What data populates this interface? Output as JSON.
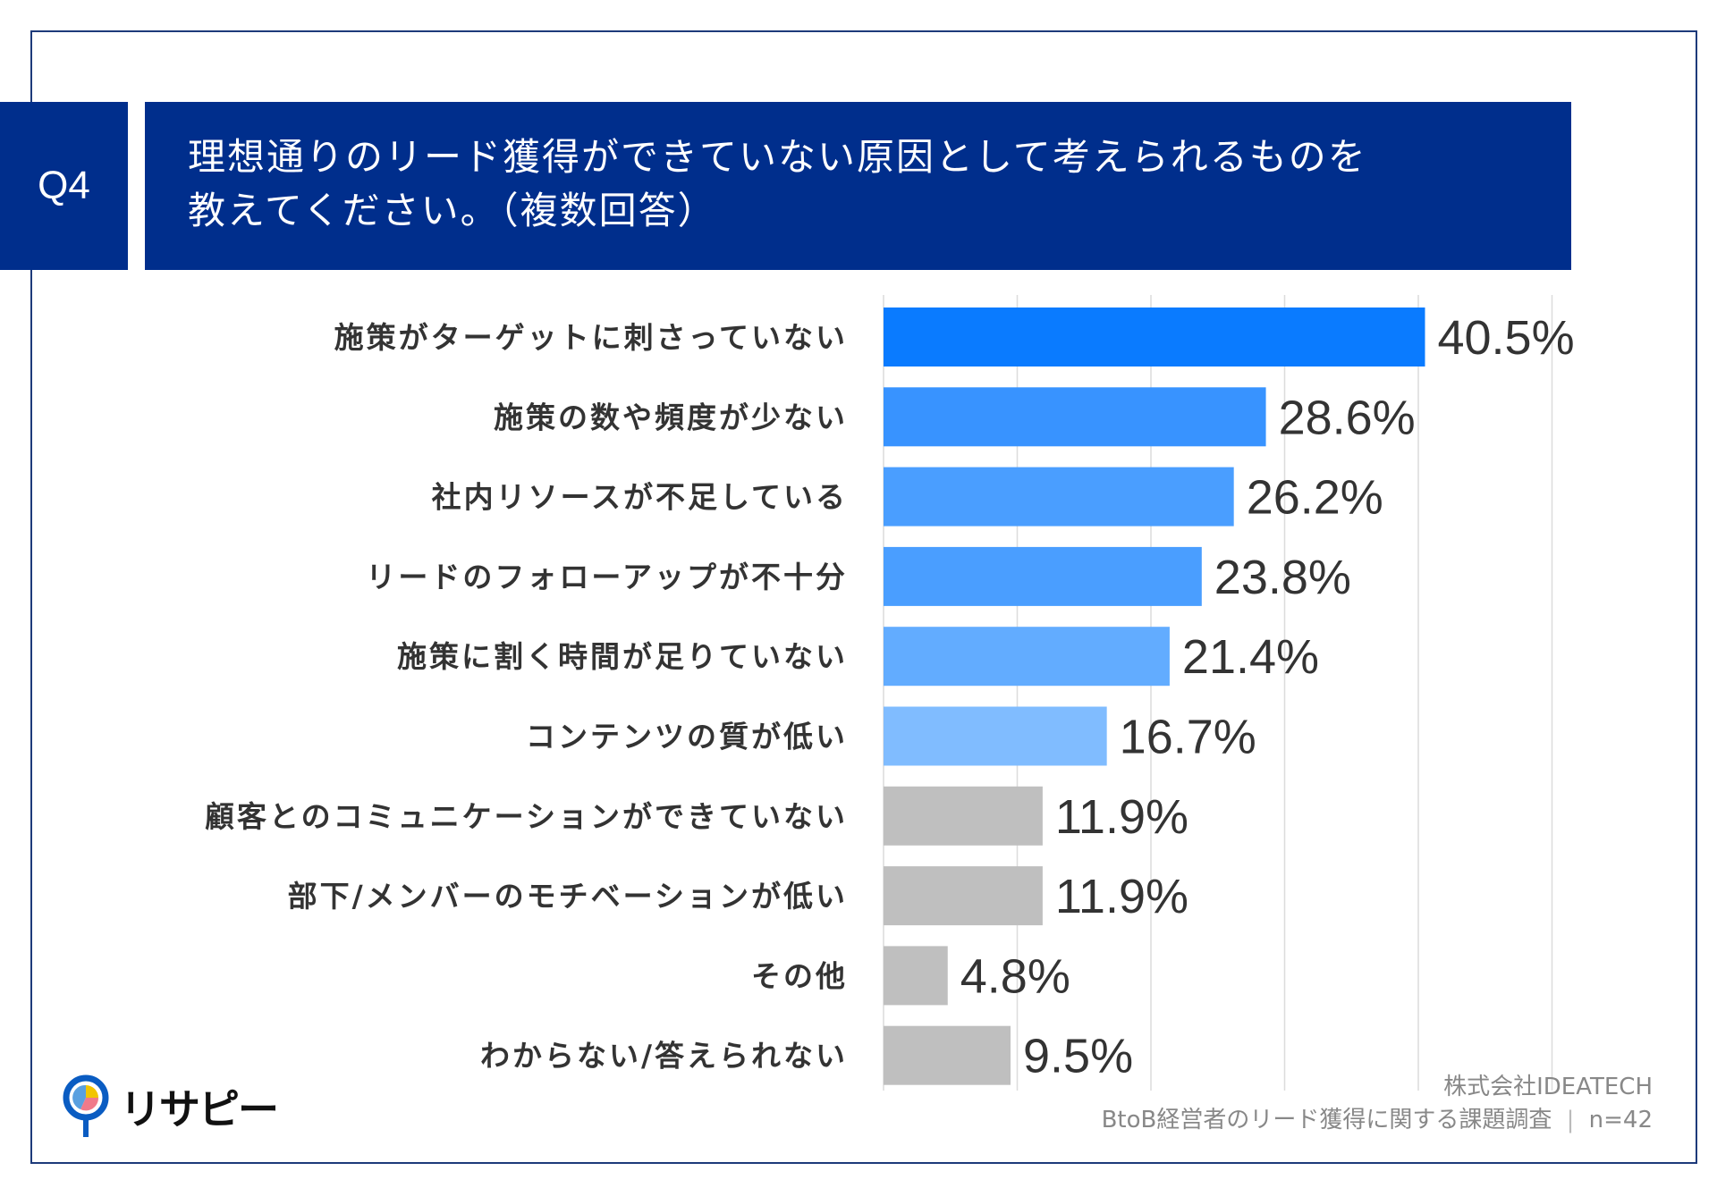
{
  "header": {
    "question_number": "Q4",
    "title_line1": "理想通りのリード獲得ができていない原因として考えられるものを",
    "title_line2": "教えてください。（複数回答）"
  },
  "chart_data": {
    "type": "bar",
    "orientation": "horizontal",
    "categories": [
      "施策がターゲットに刺さっていない",
      "施策の数や頻度が少ない",
      "社内リソースが不足している",
      "リードのフォローアップが不十分",
      "施策に割く時間が足りていない",
      "コンテンツの質が低い",
      "顧客とのコミュニケーションができていない",
      "部下/メンバーのモチベーションが低い",
      "その他",
      "わからない/答えられない"
    ],
    "values": [
      40.5,
      28.6,
      26.2,
      23.8,
      21.4,
      16.7,
      11.9,
      11.9,
      4.8,
      9.5
    ],
    "data_labels": [
      "40.5%",
      "28.6%",
      "26.2%",
      "23.8%",
      "21.4%",
      "16.7%",
      "11.9%",
      "11.9%",
      "4.8%",
      "9.5%"
    ],
    "bar_colors": [
      "#0a7bff",
      "#3893ff",
      "#4a9eff",
      "#4a9eff",
      "#62acff",
      "#80bcff",
      "#bfbfbf",
      "#bfbfbf",
      "#bfbfbf",
      "#bfbfbf"
    ],
    "xlim": [
      0,
      50
    ],
    "grid": true,
    "unit": "%"
  },
  "footer": {
    "company": "株式会社IDEATECH",
    "survey": "BtoB経営者のリード獲得に関する課題調査",
    "sample": "n=42"
  },
  "logo": {
    "text": "リサピー",
    "colors": [
      "#0a5cc2",
      "#f2c500",
      "#f07a8a",
      "#5aa0e0"
    ]
  }
}
